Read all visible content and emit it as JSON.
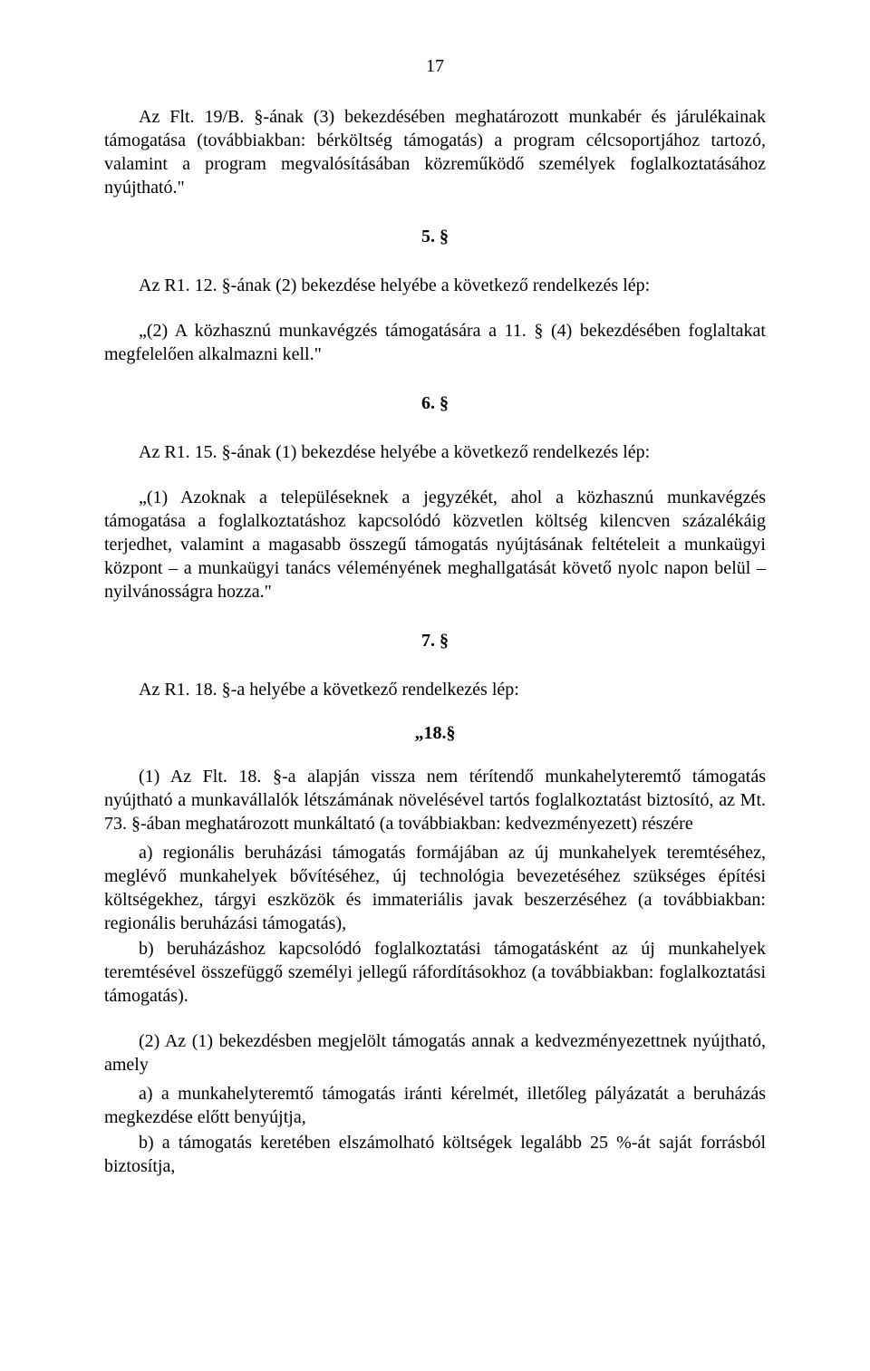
{
  "pageNumber": "17",
  "p1": "Az Flt. 19/B. §-ának (3) bekezdésében meghatározott munkabér és járulékainak támogatása (továbbiakban: bérköltség támogatás) a program célcsoportjához tartozó, valamint a program megvalósításában közreműködő személyek foglalkoztatásához nyújtható.\"",
  "s5": "5. §",
  "p2": "Az R1. 12. §-ának (2) bekezdése helyébe a következő rendelkezés lép:",
  "p3": "„(2) A közhasznú munkavégzés támogatására a 11. § (4) bekezdésében foglaltakat megfelelően alkalmazni kell.\"",
  "s6": "6. §",
  "p4": "Az R1. 15. §-ának (1) bekezdése helyébe a következő rendelkezés lép:",
  "p5": "„(1) Azoknak a településeknek a jegyzékét, ahol a közhasznú munkavégzés támogatása a foglalkoztatáshoz kapcsolódó közvetlen költség kilencven százalékáig terjedhet, valamint a magasabb összegű támogatás nyújtásának feltételeit a munkaügyi központ – a munkaügyi tanács véleményének meghallgatását követő nyolc napon belül – nyilvánosságra hozza.\"",
  "s7": "7. §",
  "p6": "Az R1. 18. §-a helyébe a következő rendelkezés lép:",
  "q18": "„18.§",
  "p7": "(1) Az Flt. 18. §-a alapján vissza nem térítendő munkahelyteremtő támogatás nyújtható a munkavállalók létszámának növelésével tartós foglalkoztatást biztosító, az Mt. 73. §-ában meghatározott munkáltató (a továbbiakban: kedvezményezett) részére",
  "p8": "a) regionális beruházási támogatás formájában az új munkahelyek teremtéséhez, meglévő munkahelyek bővítéséhez, új technológia bevezetéséhez szükséges építési költségekhez, tárgyi eszközök és immateriális javak beszerzéséhez (a továbbiakban: regionális beruházási támogatás),",
  "p9": "b) beruházáshoz kapcsolódó foglalkoztatási támogatásként az új munkahelyek teremtésével összefüggő személyi jellegű ráfordításokhoz (a továbbiakban: foglalkoztatási támogatás).",
  "p10": "(2) Az (1) bekezdésben megjelölt támogatás annak a kedvezményezettnek nyújtható, amely",
  "p11": "a) a munkahelyteremtő támogatás iránti kérelmét, illetőleg pályázatát a beruházás megkezdése előtt benyújtja,",
  "p12": "b) a támogatás keretében elszámolható költségek legalább 25 %-át saját forrásból biztosítja,"
}
